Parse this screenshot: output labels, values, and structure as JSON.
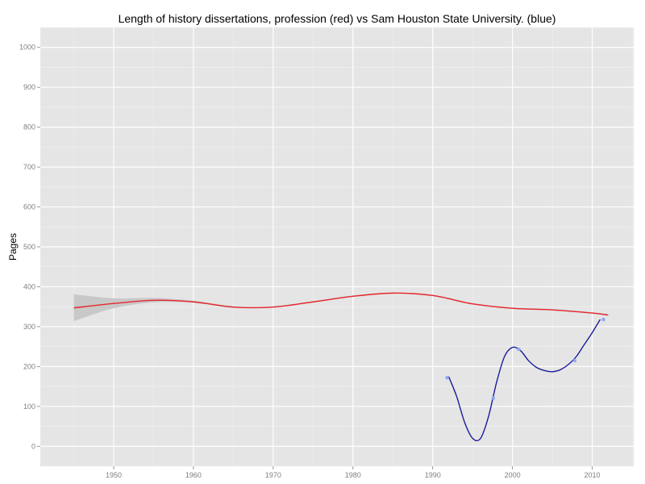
{
  "chart_data": {
    "type": "line",
    "title": "Length of history dissertations, profession (red) vs Sam Houston State University. (blue)",
    "xlabel": "",
    "ylabel": "Pages",
    "xlim": [
      1940.8,
      2015.2
    ],
    "ylim": [
      -50,
      1050
    ],
    "x_ticks": [
      1950,
      1960,
      1970,
      1980,
      1990,
      2000,
      2010
    ],
    "y_ticks": [
      0,
      100,
      200,
      300,
      400,
      500,
      600,
      700,
      800,
      900,
      1000
    ],
    "grid": true,
    "colors": {
      "panel": "#e5e5e5",
      "grid_major": "#ffffff",
      "grid_minor": "#f2f2f2",
      "profession": "#e8262b",
      "sam_houston": "#1c1c9c",
      "points": "#8fa8f0",
      "ribbon": "#c8c8c8"
    },
    "series": [
      {
        "color": "red",
        "x": [
          1945,
          1950,
          1955,
          1960,
          1965,
          1970,
          1975,
          1980,
          1985,
          1990,
          1995,
          2000,
          2005,
          2010,
          2012
        ],
        "y": [
          347,
          358,
          366,
          362,
          349,
          349,
          362,
          376,
          384,
          378,
          357,
          346,
          342,
          334,
          329
        ],
        "ribbon_lower": [
          314,
          346,
          361,
          360,
          347,
          348,
          361,
          375,
          383,
          377,
          356,
          345,
          341,
          333,
          327
        ],
        "ribbon_upper": [
          381,
          371,
          372,
          365,
          351,
          351,
          364,
          378,
          385,
          380,
          359,
          348,
          344,
          336,
          331
        ]
      },
      {
        "color": "blue",
        "x": [
          1992,
          1993,
          1994,
          1995,
          1996,
          1997,
          1998,
          1999,
          2000,
          2001,
          2002,
          2003,
          2004,
          2005,
          2006,
          2007,
          2008,
          2009,
          2010,
          2011
        ],
        "y": [
          175,
          125,
          60,
          20,
          20,
          75,
          160,
          225,
          248,
          240,
          215,
          198,
          190,
          187,
          192,
          205,
          225,
          255,
          285,
          318
        ],
        "points": [
          {
            "x": 1991.8,
            "y": 172
          },
          {
            "x": 1997.6,
            "y": 121
          },
          {
            "x": 2000.8,
            "y": 243
          },
          {
            "x": 2007.8,
            "y": 215
          },
          {
            "x": 2011.4,
            "y": 318
          }
        ]
      }
    ]
  }
}
